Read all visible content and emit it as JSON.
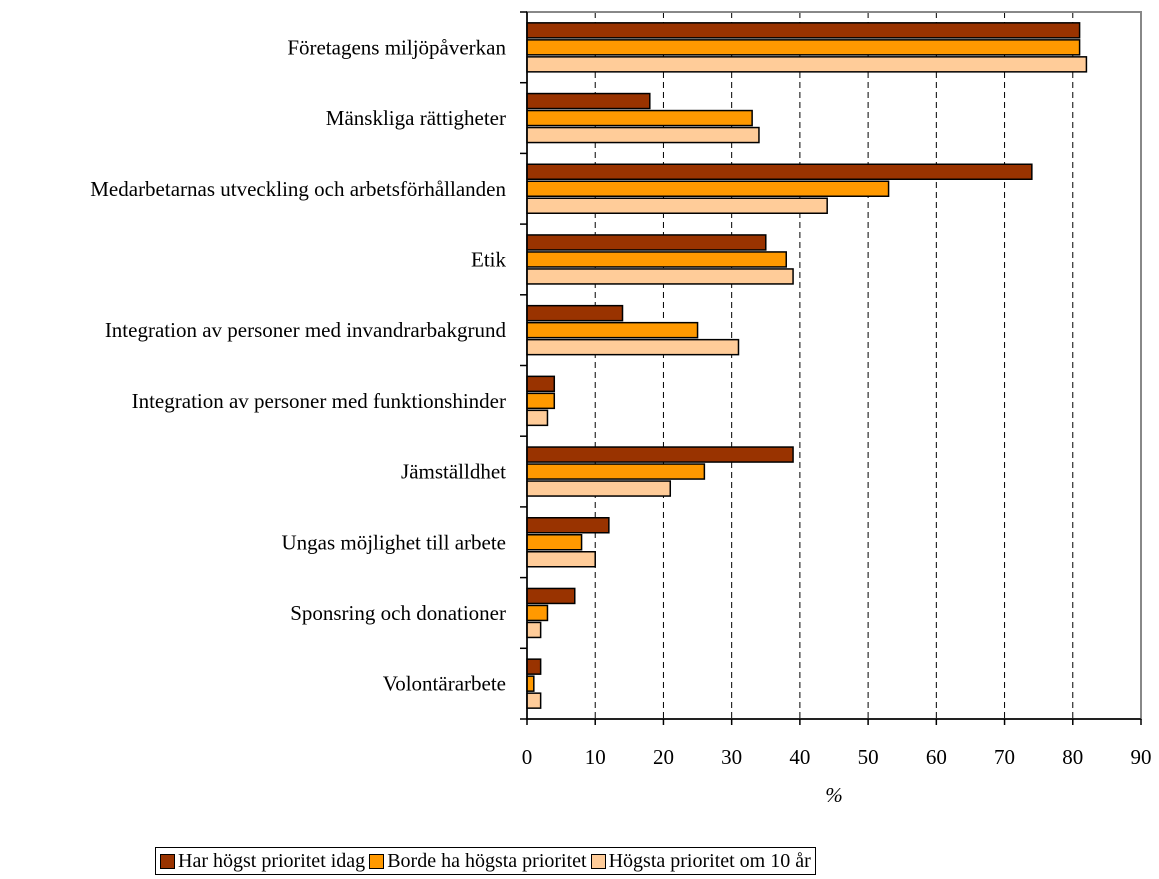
{
  "chart_data": {
    "type": "bar",
    "orientation": "horizontal",
    "categories": [
      "Företagens miljöpåverkan",
      "Mänskliga rättigheter",
      "Medarbetarnas utveckling och arbetsförhållanden",
      "Etik",
      "Integration av personer med invandrarbakgrund",
      "Integration av personer med funktionshinder",
      "Jämställdhet",
      "Ungas möjlighet till arbete",
      "Sponsring och donationer",
      "Volontärarbete"
    ],
    "series": [
      {
        "name": "Har högst prioritet idag",
        "color": "#993300",
        "values": [
          81,
          18,
          74,
          35,
          14,
          4,
          39,
          12,
          7,
          2
        ]
      },
      {
        "name": "Borde ha högsta prioritet",
        "color": "#ff9900",
        "values": [
          81,
          33,
          53,
          38,
          25,
          4,
          26,
          8,
          3,
          1
        ]
      },
      {
        "name": "Högsta prioritet om 10 år",
        "color": "#ffcc99",
        "values": [
          82,
          34,
          44,
          39,
          31,
          3,
          21,
          10,
          2,
          2
        ]
      }
    ],
    "xlabel": "%",
    "ylabel": "",
    "xlim": [
      0,
      90
    ],
    "xticks": [
      "0",
      "10",
      "20",
      "30",
      "40",
      "50",
      "60",
      "70",
      "80",
      "90"
    ],
    "grid": "vertical dashed",
    "legend_position": "bottom"
  }
}
